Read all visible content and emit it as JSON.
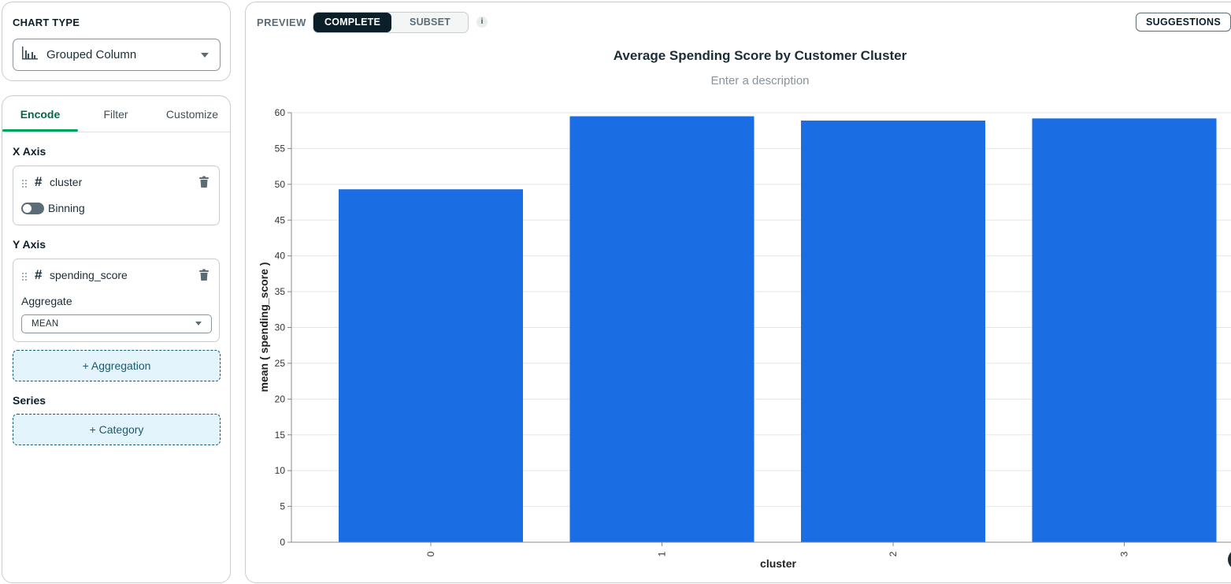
{
  "sidebar": {
    "chart_type_caption": "CHART TYPE",
    "chart_type_value": "Grouped Column",
    "tabs": [
      {
        "label": "Encode"
      },
      {
        "label": "Filter"
      },
      {
        "label": "Customize"
      }
    ],
    "x_axis": {
      "label": "X Axis",
      "field": "cluster",
      "binning_label": "Binning",
      "binning_on": false
    },
    "y_axis": {
      "label": "Y Axis",
      "field": "spending_score",
      "aggregate_label": "Aggregate",
      "aggregate_value": "MEAN"
    },
    "add_aggregation_label": "+ Aggregation",
    "series": {
      "label": "Series",
      "add_category_label": "+ Category"
    }
  },
  "preview": {
    "label": "PREVIEW",
    "mode_complete": "COMPLETE",
    "mode_subset": "SUBSET",
    "info_glyph": "i",
    "suggestions_label": "SUGGESTIONS"
  },
  "chart_data": {
    "type": "bar",
    "title": "Average Spending Score by Customer Cluster",
    "description_placeholder": "Enter a description",
    "xlabel": "cluster",
    "ylabel": "mean ( spending_score )",
    "categories": [
      "0",
      "1",
      "2",
      "3"
    ],
    "values": [
      49.3,
      59.5,
      58.9,
      59.2
    ],
    "ylim": [
      0,
      60
    ],
    "yticks": [
      0,
      5,
      10,
      15,
      20,
      25,
      30,
      35,
      40,
      45,
      50,
      55,
      60
    ],
    "grid": true,
    "bar_color": "#1a6de3"
  }
}
